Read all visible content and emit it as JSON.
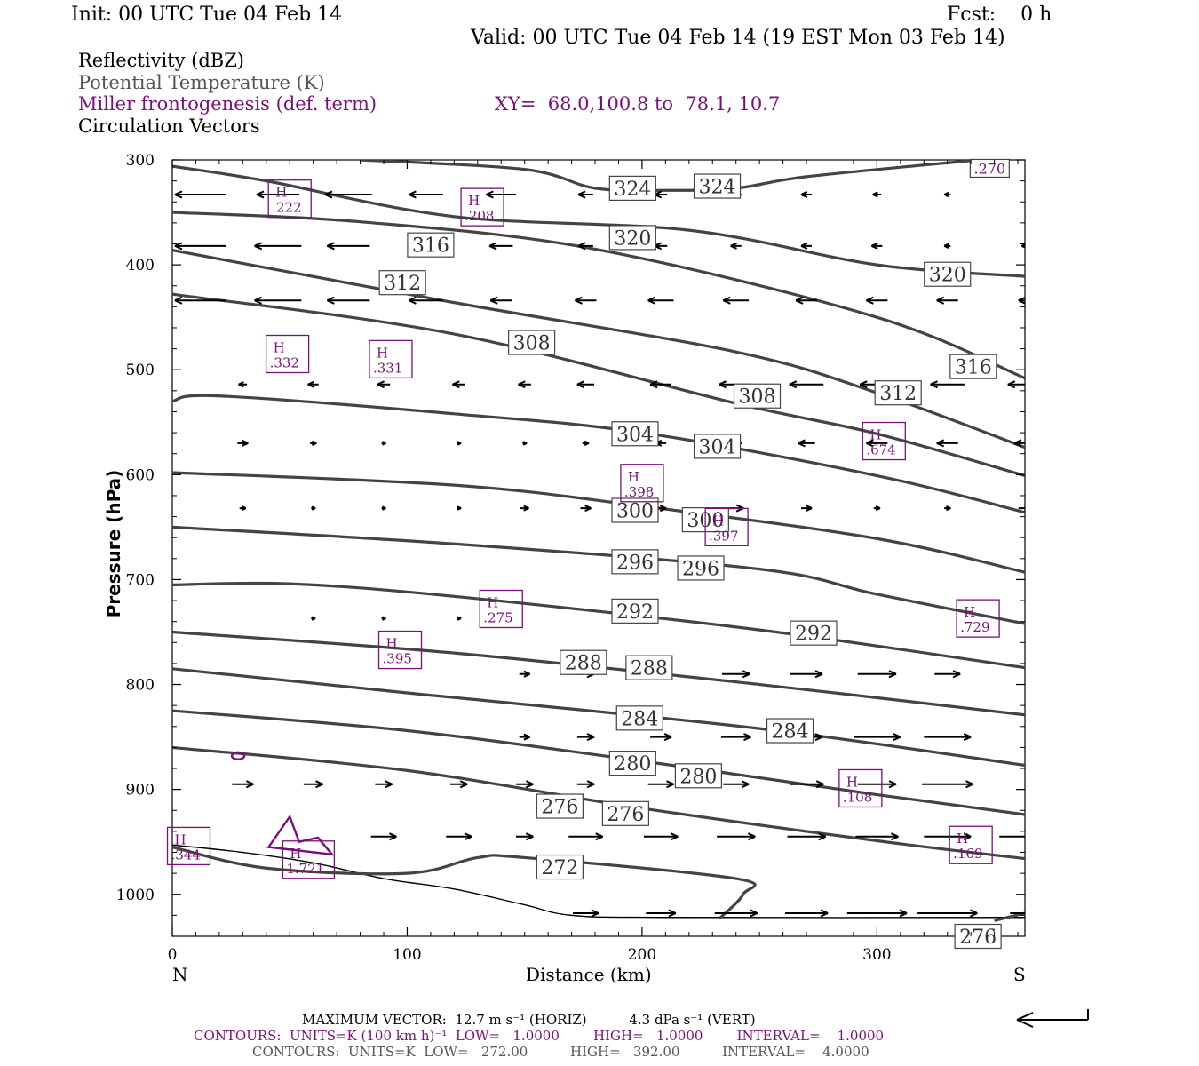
{
  "header": {
    "init": "Init: 00 UTC Tue 04 Feb 14",
    "fcst": "Fcst:    0 h",
    "valid": "Valid: 00 UTC Tue 04 Feb 14 (19 EST Mon 03 Feb 14)"
  },
  "legend": {
    "reflectivity": "Reflectivity (dBZ)",
    "theta": "Potential Temperature (K)",
    "miller": "Miller frontogenesis (def. term)",
    "xy": "XY=  68.0,100.8 to  78.1, 10.7",
    "circulation": "Circulation Vectors"
  },
  "footer": {
    "maxvec": "MAXIMUM VECTOR:  12.7 m s⁻¹ (HORIZ)          4.3 dPa s⁻¹ (VERT)",
    "contours1": "CONTOURS:  UNITS=K (100 km h)⁻¹  LOW=   1.0000        HIGH=   1.0000        INTERVAL=    1.0000",
    "contours2": "CONTOURS:  UNITS=K  LOW=   272.00          HIGH=   392.00          INTERVAL=    4.0000"
  },
  "colors": {
    "theta": "#444444",
    "frontogenesis": "#7a0f7a",
    "vectors": "#000000"
  },
  "chart_data": {
    "type": "cross-section",
    "xlabel": "Distance (km)",
    "ylabel": "Pressure (hPa)",
    "xlim": [
      0,
      363
    ],
    "ylim": [
      300,
      1040
    ],
    "y_scale": "linear, inverted",
    "xticks": [
      0,
      100,
      200,
      300
    ],
    "yticks": [
      300,
      400,
      500,
      600,
      700,
      800,
      900,
      1000
    ],
    "x_end_labels": [
      "N",
      "S"
    ],
    "theta_contours": [
      {
        "value": 324,
        "points": [
          [
            80,
            300
          ],
          [
            150,
            309
          ],
          [
            180,
            327
          ],
          [
            210,
            329
          ],
          [
            240,
            327
          ],
          [
            270,
            316
          ],
          [
            343,
            300
          ]
        ]
      },
      {
        "value": 320,
        "points": [
          [
            0,
            306
          ],
          [
            40,
            320
          ],
          [
            120,
            354
          ],
          [
            220,
            367
          ],
          [
            300,
            400
          ],
          [
            363,
            411
          ]
        ]
      },
      {
        "value": 316,
        "points": [
          [
            0,
            350
          ],
          [
            80,
            359
          ],
          [
            180,
            385
          ],
          [
            300,
            450
          ],
          [
            363,
            508
          ]
        ]
      },
      {
        "value": 312,
        "points": [
          [
            0,
            386
          ],
          [
            120,
            436
          ],
          [
            240,
            483
          ],
          [
            300,
            522
          ],
          [
            363,
            574
          ]
        ]
      },
      {
        "value": 308,
        "points": [
          [
            0,
            428
          ],
          [
            120,
            466
          ],
          [
            240,
            532
          ],
          [
            300,
            561
          ],
          [
            363,
            601
          ]
        ]
      },
      {
        "value": 304,
        "points": [
          [
            0,
            530
          ],
          [
            20,
            525
          ],
          [
            120,
            542
          ],
          [
            200,
            560
          ],
          [
            300,
            601
          ],
          [
            363,
            636
          ]
        ]
      },
      {
        "value": 300,
        "points": [
          [
            0,
            598
          ],
          [
            120,
            610
          ],
          [
            200,
            630
          ],
          [
            300,
            661
          ],
          [
            363,
            693
          ]
        ]
      },
      {
        "value": 296,
        "points": [
          [
            0,
            650
          ],
          [
            120,
            666
          ],
          [
            250,
            690
          ],
          [
            300,
            714
          ],
          [
            363,
            742
          ]
        ]
      },
      {
        "value": 292,
        "points": [
          [
            0,
            705
          ],
          [
            50,
            704
          ],
          [
            120,
            716
          ],
          [
            250,
            748
          ],
          [
            363,
            784
          ]
        ]
      },
      {
        "value": 288,
        "points": [
          [
            0,
            750
          ],
          [
            120,
            770
          ],
          [
            250,
            800
          ],
          [
            363,
            829
          ]
        ]
      },
      {
        "value": 284,
        "points": [
          [
            0,
            785
          ],
          [
            100,
            808
          ],
          [
            250,
            842
          ],
          [
            363,
            877
          ]
        ]
      },
      {
        "value": 280,
        "points": [
          [
            0,
            825
          ],
          [
            100,
            844
          ],
          [
            200,
            873
          ],
          [
            300,
            905
          ],
          [
            363,
            924
          ]
        ]
      },
      {
        "value": 276,
        "points": [
          [
            0,
            860
          ],
          [
            100,
            882
          ],
          [
            200,
            918
          ],
          [
            300,
            949
          ],
          [
            363,
            966
          ]
        ]
      },
      {
        "value": 272,
        "points": [
          [
            0,
            955
          ],
          [
            40,
            975
          ],
          [
            100,
            980
          ],
          [
            130,
            965
          ],
          [
            150,
            965
          ],
          [
            240,
            985
          ],
          [
            243,
            1000
          ],
          [
            233,
            1023
          ]
        ]
      },
      {
        "value": 276,
        "points": [
          [
            350,
            1025
          ],
          [
            363,
            1018
          ]
        ]
      }
    ],
    "theta_labels": [
      {
        "text": "324",
        "x": 196,
        "y": 327
      },
      {
        "text": "324",
        "x": 232,
        "y": 325
      },
      {
        "text": "320",
        "x": 196,
        "y": 374
      },
      {
        "text": "320",
        "x": 330,
        "y": 409
      },
      {
        "text": "316",
        "x": 110,
        "y": 381
      },
      {
        "text": "316",
        "x": 341,
        "y": 497
      },
      {
        "text": "312",
        "x": 98,
        "y": 417
      },
      {
        "text": "312",
        "x": 309,
        "y": 522
      },
      {
        "text": "308",
        "x": 153,
        "y": 474
      },
      {
        "text": "308",
        "x": 249,
        "y": 525
      },
      {
        "text": "304",
        "x": 197,
        "y": 561
      },
      {
        "text": "304",
        "x": 232,
        "y": 573
      },
      {
        "text": "300",
        "x": 197,
        "y": 634
      },
      {
        "text": "300",
        "x": 227,
        "y": 643
      },
      {
        "text": "296",
        "x": 197,
        "y": 683
      },
      {
        "text": "296",
        "x": 225,
        "y": 689
      },
      {
        "text": "292",
        "x": 197,
        "y": 730
      },
      {
        "text": "292",
        "x": 273,
        "y": 751
      },
      {
        "text": "288",
        "x": 175,
        "y": 779
      },
      {
        "text": "288",
        "x": 203,
        "y": 784
      },
      {
        "text": "284",
        "x": 199,
        "y": 832
      },
      {
        "text": "284",
        "x": 263,
        "y": 844
      },
      {
        "text": "280",
        "x": 196,
        "y": 875
      },
      {
        "text": "280",
        "x": 224,
        "y": 887
      },
      {
        "text": "276",
        "x": 165,
        "y": 916
      },
      {
        "text": "276",
        "x": 193,
        "y": 923
      },
      {
        "text": "272",
        "x": 165,
        "y": 974
      },
      {
        "text": "276",
        "x": 343,
        "y": 1040
      },
      {
        "text": ".270",
        "x": 348,
        "y": 308
      }
    ],
    "frontogenesis_maxima": [
      {
        "label": "H",
        "value": ".222",
        "x": 50,
        "y": 337
      },
      {
        "label": "H",
        "value": ".208",
        "x": 132,
        "y": 345
      },
      {
        "label": "H",
        "value": ".332",
        "x": 49,
        "y": 485
      },
      {
        "label": "H",
        "value": ".331",
        "x": 93,
        "y": 490
      },
      {
        "label": "H",
        "value": ".674",
        "x": 303,
        "y": 568
      },
      {
        "label": "H",
        "value": ".398",
        "x": 200,
        "y": 608
      },
      {
        "label": "H",
        "value": ".397",
        "x": 236,
        "y": 650
      },
      {
        "label": "H",
        "value": ".729",
        "x": 343,
        "y": 737
      },
      {
        "label": "H",
        "value": ".275",
        "x": 140,
        "y": 728
      },
      {
        "label": "H",
        "value": ".395",
        "x": 97,
        "y": 767
      },
      {
        "label": "H",
        "value": ".108",
        "x": 293,
        "y": 899
      },
      {
        "label": "H",
        "value": ".169",
        "x": 340,
        "y": 953
      },
      {
        "label": "H",
        "value": ".344",
        "x": 7,
        "y": 954
      },
      {
        "label": "H",
        "value": "1.721",
        "x": 58,
        "y": 967
      }
    ],
    "circulation_vectors": [
      {
        "p": 333,
        "x": [
          12,
          45,
          75,
          108,
          140,
          176,
          208,
          240,
          270,
          300,
          330
        ],
        "u": [
          -24,
          -20,
          -22,
          -16,
          -14,
          -7,
          -6,
          -5,
          -5,
          -4,
          -3
        ]
      },
      {
        "p": 382,
        "x": [
          12,
          45,
          75,
          108,
          140,
          176,
          208,
          240,
          270,
          300,
          330,
          363
        ],
        "u": [
          -24,
          -22,
          -20,
          -16,
          -11,
          -7,
          -6,
          -5,
          -5,
          -5,
          -3,
          -3
        ]
      },
      {
        "p": 434,
        "x": [
          12,
          45,
          75,
          108,
          140,
          176,
          208,
          240,
          270,
          300,
          330,
          363
        ],
        "u": [
          -24,
          -22,
          -20,
          -16,
          -10,
          -10,
          -12,
          -12,
          -10,
          -10,
          -10,
          -6
        ]
      },
      {
        "p": 514,
        "x": [
          30,
          60,
          90,
          122,
          150,
          176,
          208,
          240,
          270,
          300,
          330,
          363
        ],
        "u": [
          -4,
          -5,
          -6,
          -6,
          -6,
          -8,
          -10,
          -16,
          -16,
          -16,
          -16,
          -16
        ]
      },
      {
        "p": 570,
        "x": [
          30,
          60,
          90,
          122,
          150,
          176,
          208,
          240,
          270,
          300,
          330,
          363
        ],
        "u": [
          5,
          3,
          2,
          2,
          2,
          3,
          -5,
          -6,
          -8,
          -10,
          -10,
          -10
        ]
      },
      {
        "p": 632,
        "x": [
          30,
          60,
          90,
          122,
          150,
          176,
          208,
          240,
          270,
          300,
          330,
          363
        ],
        "u": [
          3,
          2,
          2,
          2,
          4,
          5,
          5,
          7,
          5,
          3,
          3,
          6
        ]
      },
      {
        "p": 737,
        "x": [
          60,
          90,
          122
        ],
        "u": [
          2,
          2,
          2
        ]
      },
      {
        "p": 790,
        "x": [
          150,
          176,
          208,
          240,
          270,
          300,
          330
        ],
        "u": [
          5,
          8,
          10,
          13,
          15,
          18,
          12
        ]
      },
      {
        "p": 850,
        "x": [
          150,
          176,
          208,
          240,
          270,
          300,
          330
        ],
        "u": [
          5,
          8,
          10,
          14,
          15,
          22,
          22
        ]
      },
      {
        "p": 895,
        "x": [
          30,
          60,
          90,
          122,
          150,
          176,
          208,
          240,
          270,
          300,
          330
        ],
        "u": [
          10,
          9,
          8,
          8,
          8,
          8,
          12,
          12,
          16,
          18,
          24
        ]
      },
      {
        "p": 945,
        "x": [
          90,
          122,
          150,
          176,
          208,
          240,
          270,
          300,
          330,
          363
        ],
        "u": [
          12,
          12,
          8,
          16,
          16,
          18,
          18,
          20,
          22,
          24
        ]
      },
      {
        "p": 1018,
        "x": [
          176,
          208,
          240,
          270,
          300,
          330,
          363
        ],
        "u": [
          12,
          14,
          20,
          20,
          28,
          28,
          14
        ]
      }
    ],
    "terrain": {
      "points": [
        [
          0,
          953
        ],
        [
          30,
          960
        ],
        [
          60,
          970
        ],
        [
          90,
          985
        ],
        [
          120,
          995
        ],
        [
          150,
          1010
        ],
        [
          170,
          1020
        ],
        [
          210,
          1022
        ],
        [
          363,
          1022
        ]
      ]
    },
    "reference_vector": "one arrow, horizontal, pointing left"
  }
}
